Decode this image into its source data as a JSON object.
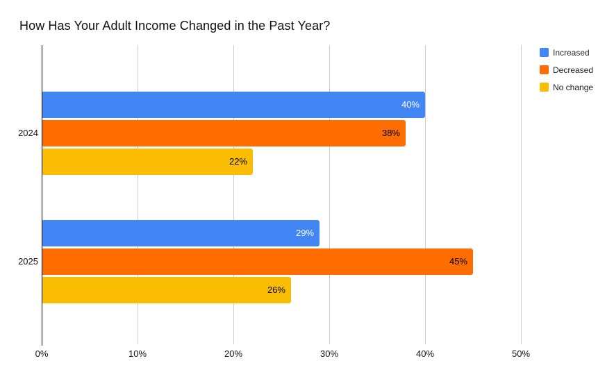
{
  "chart_data": {
    "type": "bar",
    "orientation": "horizontal",
    "title": "How Has Your Adult Income Changed in the Past Year?",
    "categories": [
      "2024",
      "2025"
    ],
    "series": [
      {
        "name": "Increased",
        "color": "#4285F4",
        "label_color": "#ffffff",
        "values": [
          40,
          29
        ]
      },
      {
        "name": "Decreased",
        "color": "#FF6D01",
        "label_color": "#000000",
        "values": [
          38,
          45
        ]
      },
      {
        "name": "No change",
        "color": "#FBBC04",
        "label_color": "#000000",
        "values": [
          22,
          26
        ]
      }
    ],
    "value_suffix": "%",
    "x_tick_values": [
      0,
      10,
      20,
      30,
      40,
      50
    ],
    "x_tick_labels": [
      "0%",
      "10%",
      "20%",
      "30%",
      "40%",
      "50%"
    ],
    "xlim": [
      0,
      51.5
    ],
    "grid": true,
    "legend_position": "right",
    "background": "#ffffff",
    "gridline_color": "#cccccc",
    "axis_color": "#000000"
  }
}
